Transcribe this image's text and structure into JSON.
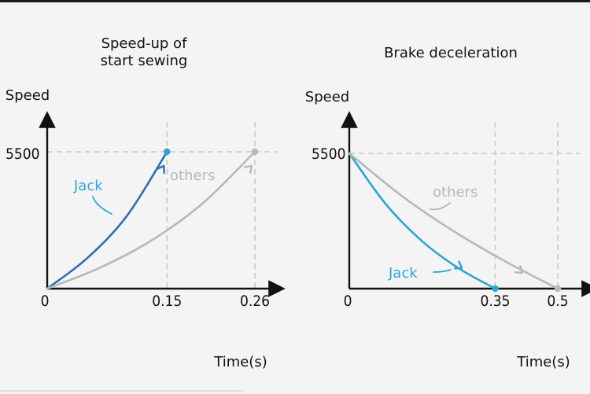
{
  "colors": {
    "jack": "#2aa6d6",
    "jack_start_line": "#2f6fb5",
    "others": "#b8b8b8",
    "axis": "#111111",
    "grid": "#c8c8c8"
  },
  "chart_data": [
    {
      "type": "line",
      "title": "Speed-up of start sewing",
      "ylabel": "Speed",
      "xlabel": "Time(s)",
      "x_ticks": [
        "0",
        "0.15",
        "0.26"
      ],
      "y_ticks": [
        "5500"
      ],
      "xlim": [
        0,
        0.26
      ],
      "ylim": [
        0,
        5500
      ],
      "grid": "dashed reference lines",
      "series": [
        {
          "name": "Jack",
          "x": [
            0,
            0.05,
            0.1,
            0.15
          ],
          "y": [
            0,
            1222,
            2933,
            5500
          ]
        },
        {
          "name": "others",
          "x": [
            0,
            0.065,
            0.13,
            0.195,
            0.26
          ],
          "y": [
            0,
            825,
            1925,
            3438,
            5500
          ]
        }
      ]
    },
    {
      "type": "line",
      "title": "Brake deceleration",
      "ylabel": "Speed",
      "xlabel": "Time(s)",
      "x_ticks": [
        "0",
        "0.35",
        "0.5"
      ],
      "y_ticks": [
        "5500"
      ],
      "xlim": [
        0,
        0.5
      ],
      "ylim": [
        0,
        5500
      ],
      "grid": "dashed reference lines",
      "series": [
        {
          "name": "Jack",
          "x": [
            0,
            0.0875,
            0.175,
            0.2625,
            0.35
          ],
          "y": [
            5500,
            3438,
            1925,
            825,
            0
          ]
        },
        {
          "name": "others",
          "x": [
            0,
            0.125,
            0.25,
            0.375,
            0.5
          ],
          "y": [
            5500,
            3781,
            2338,
            1100,
            0
          ]
        }
      ]
    }
  ]
}
